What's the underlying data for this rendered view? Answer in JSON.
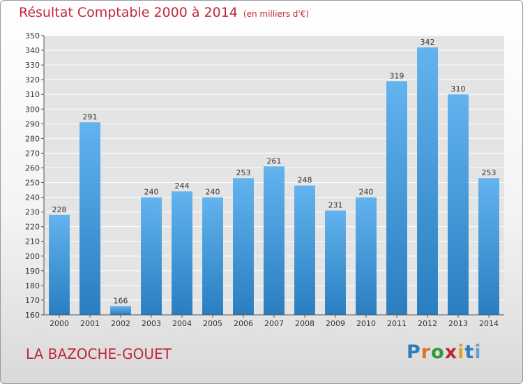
{
  "header": {
    "title": "Résultat Comptable 2000 à 2014",
    "unit": "(en milliers d'€)"
  },
  "footer": {
    "place": "LA BAZOCHE-GOUET",
    "brand": "Proxiti"
  },
  "colors": {
    "title": "#c0283a",
    "bar_top": "#62b3ee",
    "bar_bottom": "#2a7ec0",
    "grid": "#ffffff",
    "plot_bg": "#e4e4e4"
  },
  "chart_data": {
    "type": "bar",
    "title": "Résultat Comptable 2000 à 2014",
    "subtitle": "(en milliers d'€)",
    "categories": [
      "2000",
      "2001",
      "2002",
      "2003",
      "2004",
      "2005",
      "2006",
      "2007",
      "2008",
      "2009",
      "2010",
      "2011",
      "2012",
      "2013",
      "2014"
    ],
    "values": [
      228,
      291,
      166,
      240,
      244,
      240,
      253,
      261,
      248,
      231,
      240,
      319,
      342,
      310,
      253
    ],
    "ylim": [
      160,
      350
    ],
    "ytick_step": 10,
    "grid": true,
    "legend": "none"
  }
}
